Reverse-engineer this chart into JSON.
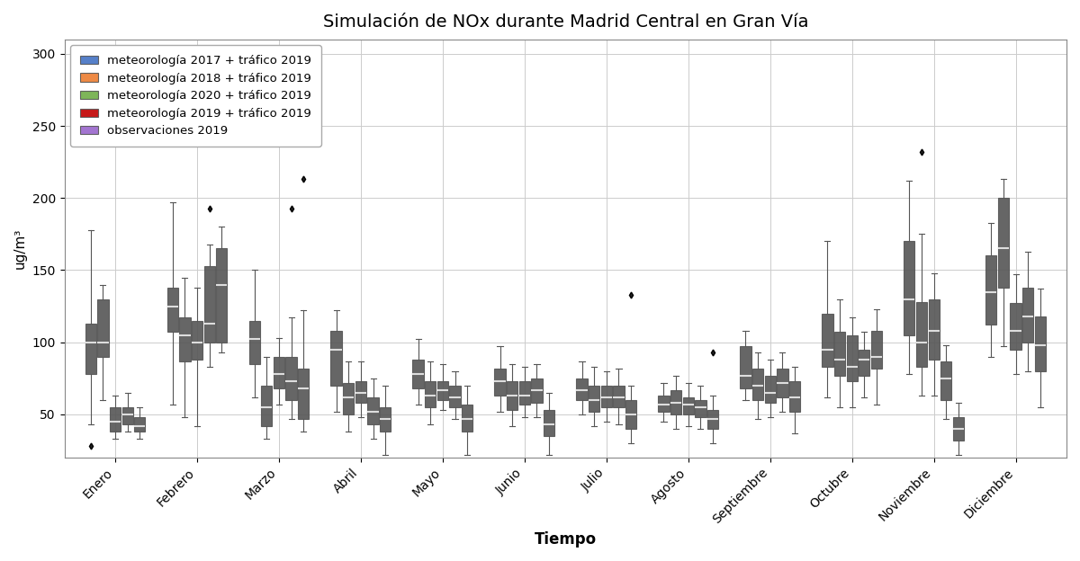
{
  "title": "Simulación de NOx durante Madrid Central en Gran Vía",
  "xlabel": "Tiempo",
  "ylabel": "ug/m³",
  "months": [
    "Enero",
    "Febrero",
    "Marzo",
    "Abril",
    "Mayo",
    "Junio",
    "Julio",
    "Agosto",
    "Septiembre",
    "Octubre",
    "Noviembre",
    "Diciembre"
  ],
  "series_labels": [
    "meteorología 2017 + tráfico 2019",
    "meteorología 2018 + tráfico 2019",
    "meteorología 2020 + tráfico 2019",
    "meteorología 2019 + tráfico 2019",
    "observaciones 2019"
  ],
  "colors": [
    "#4472C4",
    "#ED7D31",
    "#70AD47",
    "#C00000",
    "#9966CC"
  ],
  "box_data": {
    "met2017": [
      {
        "whislo": 43,
        "q1": 78,
        "med": 100,
        "q3": 113,
        "whishi": 178,
        "fliers": [
          28
        ]
      },
      {
        "whislo": 57,
        "q1": 107,
        "med": 125,
        "q3": 138,
        "whishi": 197,
        "fliers": []
      },
      {
        "whislo": 62,
        "q1": 85,
        "med": 102,
        "q3": 115,
        "whishi": 150,
        "fliers": []
      },
      {
        "whislo": 52,
        "q1": 70,
        "med": 95,
        "q3": 108,
        "whishi": 122,
        "fliers": []
      },
      {
        "whislo": 57,
        "q1": 68,
        "med": 78,
        "q3": 88,
        "whishi": 102,
        "fliers": []
      },
      {
        "whislo": 52,
        "q1": 63,
        "med": 73,
        "q3": 82,
        "whishi": 97,
        "fliers": []
      },
      {
        "whislo": 50,
        "q1": 60,
        "med": 67,
        "q3": 75,
        "whishi": 87,
        "fliers": []
      },
      {
        "whislo": 45,
        "q1": 52,
        "med": 57,
        "q3": 63,
        "whishi": 72,
        "fliers": []
      },
      {
        "whislo": 60,
        "q1": 68,
        "med": 77,
        "q3": 97,
        "whishi": 108,
        "fliers": []
      },
      {
        "whislo": 62,
        "q1": 83,
        "med": 95,
        "q3": 120,
        "whishi": 170,
        "fliers": []
      },
      {
        "whislo": 78,
        "q1": 105,
        "med": 130,
        "q3": 170,
        "whishi": 212,
        "fliers": []
      },
      {
        "whislo": 90,
        "q1": 112,
        "med": 135,
        "q3": 160,
        "whishi": 183,
        "fliers": []
      }
    ],
    "met2018": [
      {
        "whislo": 60,
        "q1": 90,
        "med": 100,
        "q3": 130,
        "whishi": 140,
        "fliers": []
      },
      {
        "whislo": 48,
        "q1": 87,
        "med": 105,
        "q3": 117,
        "whishi": 145,
        "fliers": []
      },
      {
        "whislo": 33,
        "q1": 42,
        "med": 55,
        "q3": 70,
        "whishi": 90,
        "fliers": []
      },
      {
        "whislo": 38,
        "q1": 50,
        "med": 62,
        "q3": 72,
        "whishi": 87,
        "fliers": []
      },
      {
        "whislo": 43,
        "q1": 55,
        "med": 63,
        "q3": 73,
        "whishi": 87,
        "fliers": []
      },
      {
        "whislo": 42,
        "q1": 53,
        "med": 63,
        "q3": 73,
        "whishi": 85,
        "fliers": []
      },
      {
        "whislo": 42,
        "q1": 52,
        "med": 60,
        "q3": 70,
        "whishi": 83,
        "fliers": []
      },
      {
        "whislo": 40,
        "q1": 50,
        "med": 58,
        "q3": 67,
        "whishi": 77,
        "fliers": []
      },
      {
        "whislo": 47,
        "q1": 60,
        "med": 70,
        "q3": 82,
        "whishi": 93,
        "fliers": []
      },
      {
        "whislo": 55,
        "q1": 77,
        "med": 88,
        "q3": 107,
        "whishi": 130,
        "fliers": []
      },
      {
        "whislo": 63,
        "q1": 83,
        "med": 100,
        "q3": 128,
        "whishi": 175,
        "fliers": [
          232
        ]
      },
      {
        "whislo": 97,
        "q1": 138,
        "med": 165,
        "q3": 200,
        "whishi": 213,
        "fliers": []
      }
    ],
    "met2020": [
      {
        "whislo": 33,
        "q1": 38,
        "med": 45,
        "q3": 55,
        "whishi": 63,
        "fliers": []
      },
      {
        "whislo": 42,
        "q1": 88,
        "med": 100,
        "q3": 115,
        "whishi": 138,
        "fliers": []
      },
      {
        "whislo": 57,
        "q1": 68,
        "med": 78,
        "q3": 90,
        "whishi": 103,
        "fliers": []
      },
      {
        "whislo": 48,
        "q1": 58,
        "med": 65,
        "q3": 73,
        "whishi": 87,
        "fliers": []
      },
      {
        "whislo": 53,
        "q1": 60,
        "med": 67,
        "q3": 73,
        "whishi": 85,
        "fliers": []
      },
      {
        "whislo": 48,
        "q1": 57,
        "med": 63,
        "q3": 73,
        "whishi": 83,
        "fliers": []
      },
      {
        "whislo": 45,
        "q1": 55,
        "med": 62,
        "q3": 70,
        "whishi": 80,
        "fliers": []
      },
      {
        "whislo": 42,
        "q1": 50,
        "med": 57,
        "q3": 62,
        "whishi": 72,
        "fliers": []
      },
      {
        "whislo": 48,
        "q1": 58,
        "med": 65,
        "q3": 77,
        "whishi": 88,
        "fliers": []
      },
      {
        "whislo": 55,
        "q1": 73,
        "med": 83,
        "q3": 105,
        "whishi": 117,
        "fliers": []
      },
      {
        "whislo": 63,
        "q1": 88,
        "med": 108,
        "q3": 130,
        "whishi": 148,
        "fliers": []
      },
      {
        "whislo": 78,
        "q1": 95,
        "med": 108,
        "q3": 127,
        "whishi": 147,
        "fliers": []
      }
    ],
    "met2019": [
      {
        "whislo": 38,
        "q1": 43,
        "med": 50,
        "q3": 55,
        "whishi": 65,
        "fliers": []
      },
      {
        "whislo": 83,
        "q1": 100,
        "med": 113,
        "q3": 153,
        "whishi": 168,
        "fliers": [
          193
        ]
      },
      {
        "whislo": 47,
        "q1": 60,
        "med": 73,
        "q3": 90,
        "whishi": 117,
        "fliers": [
          193
        ]
      },
      {
        "whislo": 33,
        "q1": 43,
        "med": 52,
        "q3": 62,
        "whishi": 75,
        "fliers": []
      },
      {
        "whislo": 47,
        "q1": 55,
        "med": 62,
        "q3": 70,
        "whishi": 80,
        "fliers": []
      },
      {
        "whislo": 48,
        "q1": 58,
        "med": 67,
        "q3": 75,
        "whishi": 85,
        "fliers": []
      },
      {
        "whislo": 43,
        "q1": 55,
        "med": 62,
        "q3": 70,
        "whishi": 82,
        "fliers": []
      },
      {
        "whislo": 40,
        "q1": 48,
        "med": 55,
        "q3": 60,
        "whishi": 70,
        "fliers": []
      },
      {
        "whislo": 52,
        "q1": 62,
        "med": 72,
        "q3": 82,
        "whishi": 93,
        "fliers": []
      },
      {
        "whislo": 62,
        "q1": 77,
        "med": 88,
        "q3": 95,
        "whishi": 107,
        "fliers": []
      },
      {
        "whislo": 47,
        "q1": 60,
        "med": 75,
        "q3": 87,
        "whishi": 98,
        "fliers": []
      },
      {
        "whislo": 80,
        "q1": 100,
        "med": 118,
        "q3": 138,
        "whishi": 163,
        "fliers": []
      }
    ],
    "obs2019": [
      {
        "whislo": 33,
        "q1": 38,
        "med": 42,
        "q3": 48,
        "whishi": 55,
        "fliers": []
      },
      {
        "whislo": 93,
        "q1": 100,
        "med": 140,
        "q3": 165,
        "whishi": 180,
        "fliers": []
      },
      {
        "whislo": 38,
        "q1": 47,
        "med": 68,
        "q3": 82,
        "whishi": 122,
        "fliers": [
          213
        ]
      },
      {
        "whislo": 22,
        "q1": 38,
        "med": 47,
        "q3": 55,
        "whishi": 70,
        "fliers": []
      },
      {
        "whislo": 22,
        "q1": 38,
        "med": 47,
        "q3": 57,
        "whishi": 70,
        "fliers": []
      },
      {
        "whislo": 22,
        "q1": 35,
        "med": 43,
        "q3": 53,
        "whishi": 65,
        "fliers": []
      },
      {
        "whislo": 30,
        "q1": 40,
        "med": 50,
        "q3": 60,
        "whishi": 70,
        "fliers": [
          133
        ]
      },
      {
        "whislo": 30,
        "q1": 40,
        "med": 47,
        "q3": 53,
        "whishi": 63,
        "fliers": [
          93
        ]
      },
      {
        "whislo": 37,
        "q1": 52,
        "med": 62,
        "q3": 73,
        "whishi": 83,
        "fliers": []
      },
      {
        "whislo": 57,
        "q1": 82,
        "med": 90,
        "q3": 108,
        "whishi": 123,
        "fliers": []
      },
      {
        "whislo": 22,
        "q1": 32,
        "med": 40,
        "q3": 48,
        "whishi": 58,
        "fliers": []
      },
      {
        "whislo": 55,
        "q1": 80,
        "med": 98,
        "q3": 118,
        "whishi": 137,
        "fliers": []
      }
    ]
  },
  "ylim": [
    20,
    310
  ],
  "yticks": [
    50,
    100,
    150,
    200,
    250,
    300
  ],
  "background_color": "#ffffff",
  "grid_color": "#cccccc"
}
